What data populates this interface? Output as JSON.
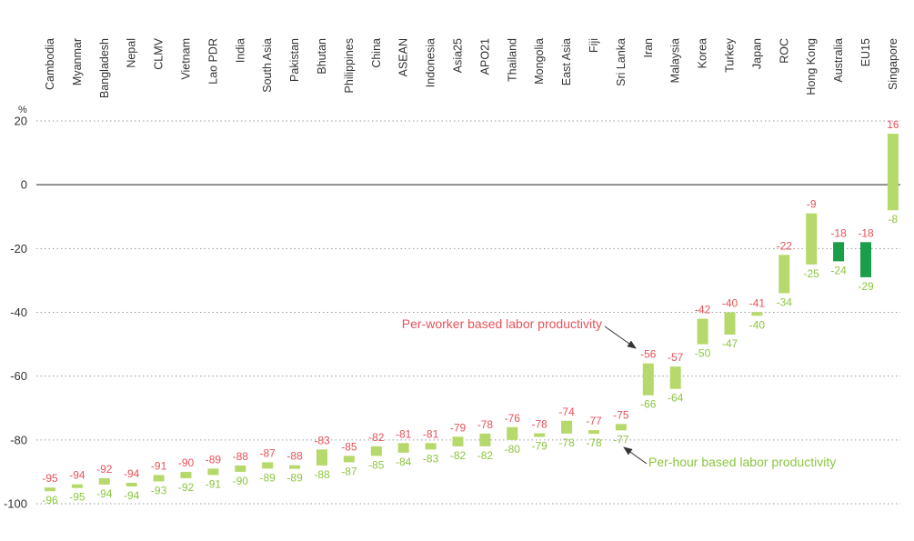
{
  "chart_data": {
    "type": "bar",
    "title": "",
    "xlabel": "",
    "ylabel": "%",
    "ylim": [
      -100,
      20
    ],
    "yticks": [
      20,
      0,
      -20,
      -40,
      -60,
      -80,
      -100
    ],
    "grid": true,
    "colors": {
      "per_worker": "#e8525a",
      "per_hour": "#8cc63f",
      "bar_light": "#b5d96a",
      "bar_dark": "#1a9e4a",
      "arrow": "#333333"
    },
    "categories": [
      "Cambodia",
      "Myanmar",
      "Bangladesh",
      "Nepal",
      "CLMV",
      "Vietnam",
      "Lao PDR",
      "India",
      "South Asia",
      "Pakistan",
      "Bhutan",
      "Philippines",
      "China",
      "ASEAN",
      "Indonesia",
      "Asia25",
      "APO21",
      "Thailand",
      "Mongolia",
      "East Asia",
      "Fiji",
      "Sri Lanka",
      "Iran",
      "Malaysia",
      "Korea",
      "Turkey",
      "Japan",
      "ROC",
      "Hong Kong",
      "Australia",
      "EU15",
      "Singapore"
    ],
    "series": [
      {
        "name": "Per-worker based labor productivity",
        "values": [
          -95,
          -94,
          -92,
          -94,
          -91,
          -90,
          -89,
          -88,
          -87,
          -88,
          -83,
          -85,
          -82,
          -81,
          -81,
          -79,
          -78,
          -76,
          -78,
          -74,
          -77,
          -75,
          -56,
          -57,
          -42,
          -40,
          -41,
          -22,
          -9,
          -18,
          -18,
          16
        ]
      },
      {
        "name": "Per-hour based labor productivity",
        "values": [
          -96,
          -95,
          -94,
          -94,
          -93,
          -92,
          -91,
          -90,
          -89,
          -89,
          -88,
          -87,
          -85,
          -84,
          -83,
          -82,
          -82,
          -80,
          -79,
          -78,
          -78,
          -77,
          -66,
          -64,
          -50,
          -47,
          -40,
          -34,
          -25,
          -24,
          -29,
          -8
        ]
      }
    ],
    "dark_bars": [
      "Australia",
      "EU15"
    ],
    "annotations": [
      {
        "text": "Per-worker based labor productivity",
        "series": "Per-worker based labor productivity",
        "points_to": "Iran"
      },
      {
        "text": "Per-hour based labor productivity",
        "series": "Per-hour based labor productivity",
        "points_to": "Sri Lanka"
      }
    ]
  }
}
